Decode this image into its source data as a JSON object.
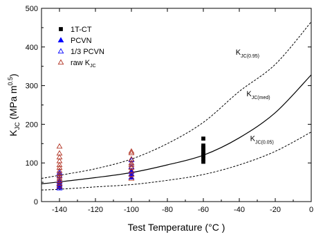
{
  "chart_data": {
    "type": "scatter",
    "xlabel": "Test Temperature  (°C )",
    "ylabel": "K_JC  (MPa m^0.5)",
    "xlim": [
      -150,
      0
    ],
    "ylim": [
      0,
      500
    ],
    "xticks": [
      "-140",
      "-120",
      "-100",
      "-80",
      "-60",
      "-40",
      "-20",
      "0"
    ],
    "yticks": [
      "0",
      "100",
      "200",
      "300",
      "400",
      "500"
    ],
    "grid": false,
    "legend_placement": "top-left",
    "legend": [
      {
        "name": "1T-CT",
        "marker": "filled-square"
      },
      {
        "name": "PCVN",
        "marker": "filled-triangle-blue"
      },
      {
        "name": "1/3 PCVN",
        "marker": "open-triangle-blue"
      },
      {
        "name": "raw K_JC",
        "marker": "open-triangle-red"
      }
    ],
    "curves": [
      {
        "name": "K_JC(0.95)",
        "style": "dashed",
        "x": [
          -150,
          -140,
          -120,
          -100,
          -80,
          -60,
          -40,
          -20,
          0
        ],
        "y": [
          60,
          68,
          85,
          110,
          150,
          205,
          285,
          355,
          465
        ]
      },
      {
        "name": "K_JC(med)",
        "style": "solid",
        "x": [
          -150,
          -140,
          -120,
          -100,
          -80,
          -60,
          -40,
          -20,
          0
        ],
        "y": [
          46,
          51,
          62,
          75,
          95,
          120,
          165,
          230,
          328
        ]
      },
      {
        "name": "K_JC(0.05)",
        "style": "dashed",
        "x": [
          -150,
          -140,
          -120,
          -100,
          -80,
          -60,
          -40,
          -20,
          0
        ],
        "y": [
          30,
          32,
          38,
          44,
          55,
          70,
          95,
          130,
          180
        ]
      }
    ],
    "curve_labels": [
      {
        "main": "K",
        "sub": "JC(0.95)",
        "x": -42,
        "y": 380
      },
      {
        "main": "K",
        "sub": "JC(med)",
        "x": -36,
        "y": 272
      },
      {
        "main": "K",
        "sub": "JC(0.05)",
        "x": -34,
        "y": 157
      }
    ],
    "series": [
      {
        "name": "1T-CT",
        "marker": "filled-square",
        "color": "#000000",
        "x": [
          -60,
          -60,
          -60,
          -60,
          -60,
          -60,
          -60,
          -60,
          -60,
          -60
        ],
        "y": [
          103,
          110,
          118,
          124,
          130,
          135,
          140,
          145,
          163,
          122
        ]
      },
      {
        "name": "PCVN",
        "marker": "filled-triangle",
        "color": "#0000ff",
        "x": [
          -140,
          -140,
          -140,
          -100,
          -100,
          -100
        ],
        "y": [
          38,
          45,
          52,
          63,
          72,
          78
        ]
      },
      {
        "name": "1/3 PCVN",
        "marker": "open-triangle",
        "color": "#0000ff",
        "x": [
          -140,
          -140,
          -140,
          -140,
          -140,
          -140,
          -140,
          -100,
          -100,
          -100,
          -100
        ],
        "y": [
          35,
          42,
          48,
          55,
          60,
          68,
          75,
          80,
          90,
          100,
          108
        ]
      },
      {
        "name": "raw K_JC",
        "marker": "open-triangle",
        "color": "#b03020",
        "x": [
          -140,
          -140,
          -140,
          -140,
          -140,
          -140,
          -140,
          -140,
          -140,
          -140,
          -140,
          -140,
          -140,
          -100,
          -100,
          -100,
          -100,
          -100,
          -100,
          -100,
          -100,
          -100
        ],
        "y": [
          40,
          47,
          54,
          60,
          66,
          72,
          80,
          88,
          95,
          105,
          115,
          125,
          143,
          60,
          70,
          80,
          88,
          95,
          100,
          110,
          126,
          130
        ]
      }
    ]
  }
}
